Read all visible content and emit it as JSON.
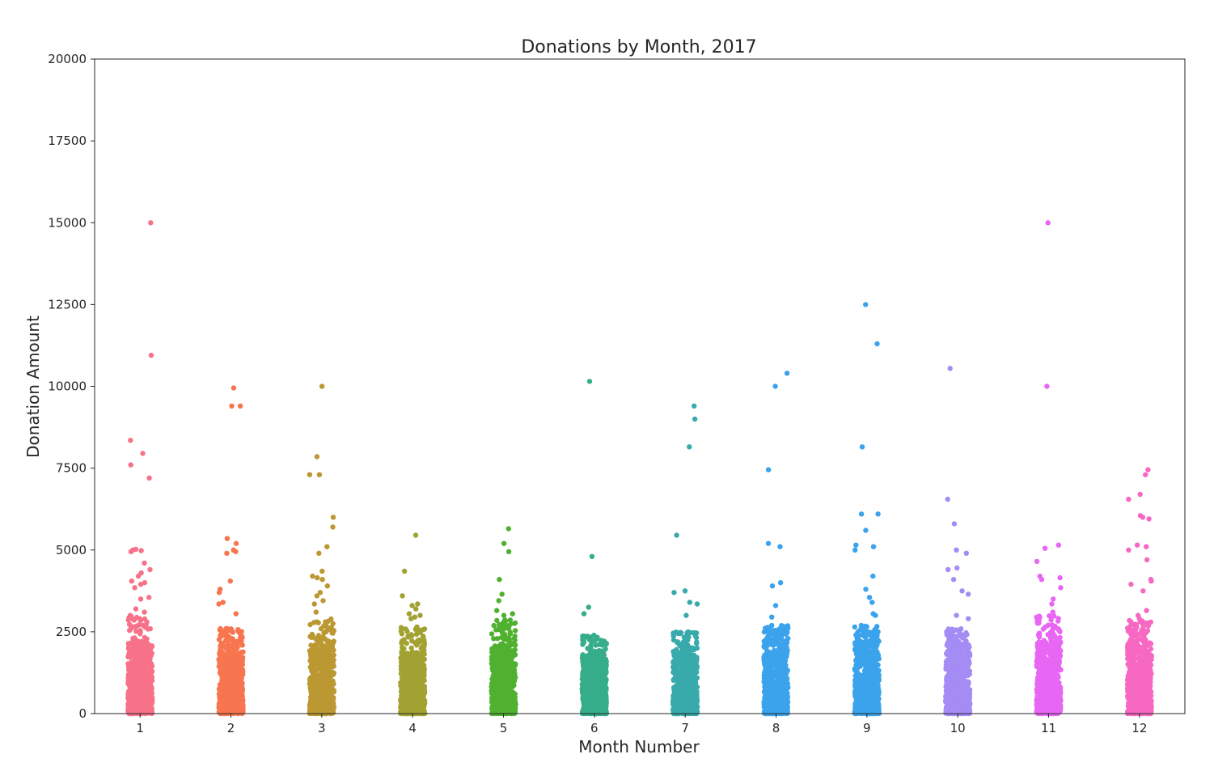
{
  "chart_data": {
    "type": "scatter",
    "subtype": "strip",
    "title": "Donations by Month, 2017",
    "xlabel": "Month Number",
    "ylabel": "Donation Amount",
    "ylim": [
      0,
      20000
    ],
    "yticks": [
      0,
      2500,
      5000,
      7500,
      10000,
      12500,
      15000,
      17500,
      20000
    ],
    "categories": [
      "1",
      "2",
      "3",
      "4",
      "5",
      "6",
      "7",
      "8",
      "9",
      "10",
      "11",
      "12"
    ],
    "grid": false,
    "legend": "none",
    "series": [
      {
        "category": "1",
        "color": "#f77189",
        "dense_max": 2100,
        "sparse_max": 3000,
        "outliers": [
          15000,
          10950,
          8350,
          7950,
          7600,
          7200,
          5020,
          5000,
          4980,
          4950,
          4600,
          4400,
          4300,
          4200,
          4050,
          4000,
          3950,
          3850,
          3550,
          3500,
          3200,
          3100,
          3000
        ]
      },
      {
        "category": "2",
        "color": "#f7754f",
        "dense_max": 2100,
        "sparse_max": 2600,
        "outliers": [
          9950,
          9400,
          9400,
          5350,
          5200,
          5000,
          4950,
          4900,
          4050,
          3800,
          3700,
          3400,
          3350,
          3050
        ]
      },
      {
        "category": "3",
        "color": "#bb9832",
        "dense_max": 2100,
        "sparse_max": 2900,
        "outliers": [
          10000,
          7850,
          7300,
          7300,
          6000,
          5700,
          5100,
          4900,
          4350,
          4200,
          4150,
          4100,
          3900,
          3700,
          3600,
          3450,
          3350,
          3100
        ]
      },
      {
        "category": "4",
        "color": "#a2a233",
        "dense_max": 1900,
        "sparse_max": 2700,
        "outliers": [
          5450,
          4350,
          3600,
          3350,
          3300,
          3200,
          3050,
          3000,
          2950,
          2900
        ]
      },
      {
        "category": "5",
        "color": "#50b131",
        "dense_max": 2100,
        "sparse_max": 2900,
        "outliers": [
          5650,
          5200,
          4950,
          4100,
          3650,
          3450,
          3150,
          3050,
          3000
        ]
      },
      {
        "category": "6",
        "color": "#36ad8a",
        "dense_max": 1800,
        "sparse_max": 2400,
        "outliers": [
          10150,
          4800,
          3250,
          3050
        ]
      },
      {
        "category": "7",
        "color": "#38aaac",
        "dense_max": 2000,
        "sparse_max": 2500,
        "outliers": [
          9400,
          9000,
          8150,
          5450,
          3750,
          3700,
          3400,
          3350,
          3000
        ]
      },
      {
        "category": "8",
        "color": "#3ba3ec",
        "dense_max": 2300,
        "sparse_max": 2700,
        "outliers": [
          10400,
          10000,
          7450,
          5200,
          5100,
          4000,
          3900,
          3300,
          2950
        ]
      },
      {
        "category": "9",
        "color": "#3ba3ec",
        "dense_max": 2200,
        "sparse_max": 2700,
        "outliers": [
          12500,
          11300,
          8150,
          6100,
          6100,
          5600,
          5150,
          5100,
          5000,
          4200,
          3800,
          3550,
          3400,
          3050,
          3000
        ]
      },
      {
        "category": "10",
        "color": "#a48cf4",
        "dense_max": 2100,
        "sparse_max": 2600,
        "outliers": [
          10550,
          6550,
          5800,
          5000,
          4900,
          4450,
          4400,
          4100,
          3750,
          3650,
          3000,
          2900
        ]
      },
      {
        "category": "11",
        "color": "#e866f4",
        "dense_max": 2200,
        "sparse_max": 3000,
        "outliers": [
          15000,
          10000,
          5150,
          5050,
          4650,
          4200,
          4150,
          4100,
          3850,
          3500,
          3350,
          3100
        ]
      },
      {
        "category": "12",
        "color": "#f668c2",
        "dense_max": 2300,
        "sparse_max": 2900,
        "outliers": [
          7450,
          7300,
          6700,
          6550,
          6050,
          6000,
          5950,
          5150,
          5100,
          5000,
          4700,
          4100,
          4050,
          3950,
          3750,
          3150,
          3000
        ]
      }
    ]
  }
}
